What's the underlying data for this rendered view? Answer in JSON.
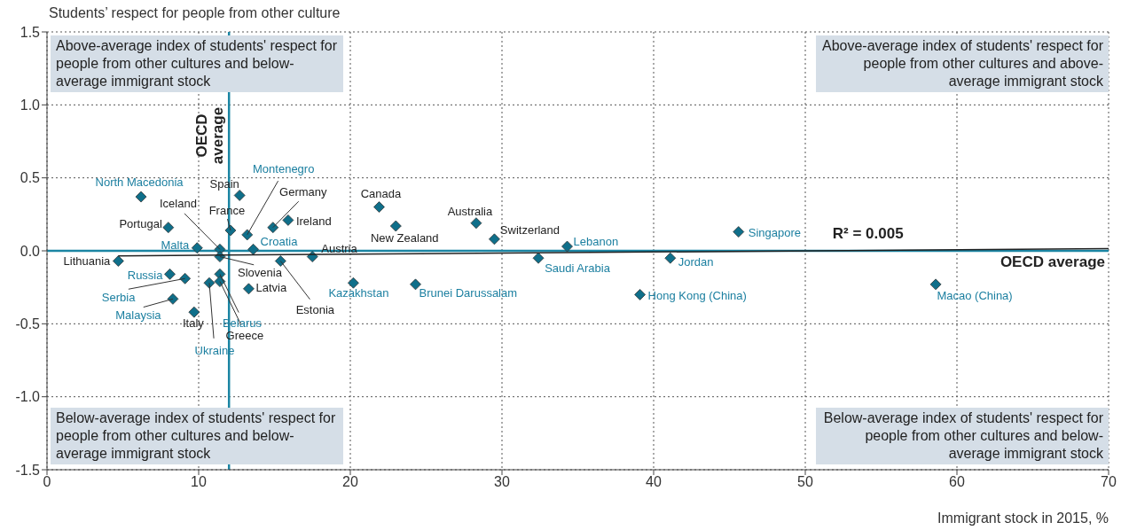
{
  "chart_data": {
    "type": "scatter",
    "xlabel": "Immigrant stock in 2015, %",
    "ylabel": "Students’ respect for people from other culture",
    "xlim": [
      0,
      70
    ],
    "xticks": [
      0,
      10,
      20,
      30,
      40,
      50,
      60,
      70
    ],
    "ylim": [
      -1.5,
      1.5
    ],
    "yticks": [
      -1.5,
      {
        "value": -1,
        "label": "-1.0"
      },
      -0.5,
      {
        "value": 0,
        "label": "0.0"
      },
      0.5,
      {
        "value": 1,
        "label": "1.0"
      },
      1.5
    ],
    "grid": true,
    "marker": "diamond",
    "series": [
      {
        "type": "scatter",
        "color": "#0f6f8a",
        "x": [
          6.2,
          8.0,
          11.4,
          12.7,
          12.1,
          13.2,
          14.9,
          15.9,
          9.9,
          13.6,
          4.7,
          11.4,
          17.5,
          15.4,
          8.1,
          9.1,
          8.3,
          9.7,
          13.3,
          11.4,
          11.4,
          10.7,
          21.9,
          23.0,
          28.3,
          29.5,
          34.3,
          32.4,
          41.1,
          45.6,
          20.2,
          24.3,
          39.1,
          58.6
        ],
        "values": [
          0.37,
          0.16,
          0.01,
          0.38,
          0.14,
          0.11,
          0.16,
          0.21,
          0.02,
          0.01,
          -0.07,
          -0.04,
          -0.04,
          -0.07,
          -0.16,
          -0.19,
          -0.33,
          -0.42,
          -0.26,
          -0.16,
          -0.21,
          -0.22,
          0.3,
          0.17,
          0.19,
          0.08,
          0.03,
          -0.05,
          -0.05,
          0.13,
          -0.22,
          -0.23,
          -0.3,
          -0.23
        ]
      },
      {
        "type": "line",
        "color": "#222222",
        "marker": "none",
        "x": [
          4.7,
          70
        ],
        "values": [
          -0.035,
          0.015
        ]
      }
    ],
    "ref_lines": [
      {
        "axis": "x",
        "value": 12,
        "label": "OECD average",
        "color": "#1b85a3"
      },
      {
        "axis": "y",
        "value": 0,
        "label": "OECD average",
        "color": "#1b85a3"
      }
    ],
    "annotations": [
      {
        "text": "North Macedonia",
        "x": 6.2,
        "y": 0.37
      },
      {
        "text": "Portugal",
        "x": 8.0,
        "y": 0.16
      },
      {
        "text": "Iceland",
        "x": 11.4,
        "y": 0.01
      },
      {
        "text": "Spain",
        "x": 12.7,
        "y": 0.38
      },
      {
        "text": "France",
        "x": 12.1,
        "y": 0.14
      },
      {
        "text": "Montenegro",
        "x": 13.2,
        "y": 0.11
      },
      {
        "text": "Germany",
        "x": 14.9,
        "y": 0.16
      },
      {
        "text": "Ireland",
        "x": 15.9,
        "y": 0.21
      },
      {
        "text": "Malta",
        "x": 9.9,
        "y": 0.02
      },
      {
        "text": "Croatia",
        "x": 13.6,
        "y": 0.01
      },
      {
        "text": "Lithuania",
        "x": 4.7,
        "y": -0.07
      },
      {
        "text": "Slovenia",
        "x": 11.4,
        "y": -0.04
      },
      {
        "text": "Austria",
        "x": 17.5,
        "y": -0.04
      },
      {
        "text": "Estonia",
        "x": 15.4,
        "y": -0.07
      },
      {
        "text": "Russia",
        "x": 8.1,
        "y": -0.16
      },
      {
        "text": "Serbia",
        "x": 9.1,
        "y": -0.19
      },
      {
        "text": "Malaysia",
        "x": 8.3,
        "y": -0.33
      },
      {
        "text": "Italy",
        "x": 9.7,
        "y": -0.42
      },
      {
        "text": "Latvia",
        "x": 13.3,
        "y": -0.26
      },
      {
        "text": "Belarus",
        "x": 11.4,
        "y": -0.16
      },
      {
        "text": "Greece",
        "x": 11.4,
        "y": -0.21
      },
      {
        "text": "Ukraine",
        "x": 10.7,
        "y": -0.22
      },
      {
        "text": "Canada",
        "x": 21.9,
        "y": 0.3
      },
      {
        "text": "New Zealand",
        "x": 23.0,
        "y": 0.17
      },
      {
        "text": "Australia",
        "x": 28.3,
        "y": 0.19
      },
      {
        "text": "Switzerland",
        "x": 29.5,
        "y": 0.08
      },
      {
        "text": "Lebanon",
        "x": 34.3,
        "y": 0.03
      },
      {
        "text": "Saudi Arabia",
        "x": 32.4,
        "y": -0.05
      },
      {
        "text": "Jordan",
        "x": 41.1,
        "y": -0.05
      },
      {
        "text": "Singapore",
        "x": 45.6,
        "y": 0.13
      },
      {
        "text": "Kazakhstan",
        "x": 20.2,
        "y": -0.22
      },
      {
        "text": "Brunei Darussalam",
        "x": 24.3,
        "y": -0.23
      },
      {
        "text": "Hong Kong (China)",
        "x": 39.1,
        "y": -0.3
      },
      {
        "text": "Macao (China)",
        "x": 58.6,
        "y": -0.23
      },
      "Above-average index of students' respect for people from other cultures and below-average immigrant stock",
      "Above-average index of students' respect for people from other cultures and above-average immigrant stock",
      "Below-average index of students' respect for people from other cultures and below-average immigrant stock",
      "Below-average index of students' respect for people from other cultures and below-average immigrant stock",
      "R² = 0.005"
    ]
  }
}
